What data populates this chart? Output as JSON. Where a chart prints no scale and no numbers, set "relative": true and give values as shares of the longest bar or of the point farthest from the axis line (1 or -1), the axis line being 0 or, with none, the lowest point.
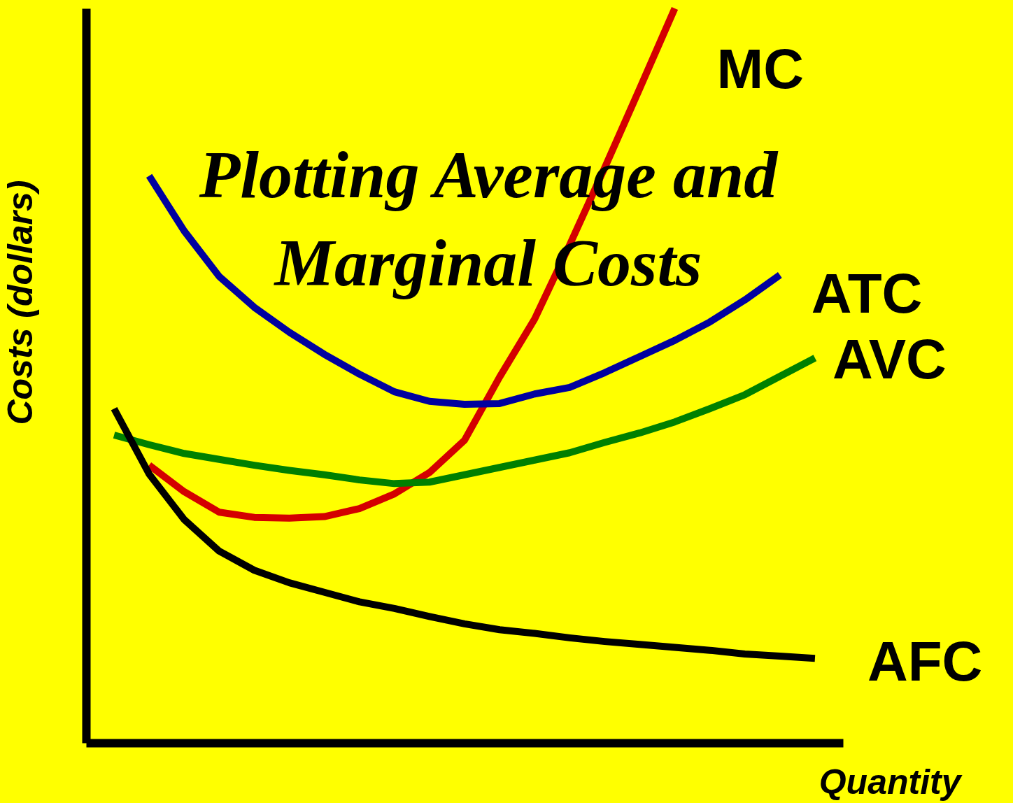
{
  "chart_data": {
    "type": "line",
    "title": "Plotting Average and Marginal Costs",
    "xlabel": "Quantity",
    "ylabel": "Costs (dollars)",
    "relative": true,
    "grid": false,
    "marker": "none",
    "line_style": "solid",
    "categories": [
      null,
      null,
      null,
      null,
      null,
      null,
      null,
      null,
      null,
      null,
      null,
      null,
      null,
      null,
      null,
      null,
      null,
      null,
      null,
      null,
      null
    ],
    "series": [
      {
        "name": "MC",
        "color": "#d40000",
        "values": [
          null,
          0.378,
          0.342,
          0.314,
          0.307,
          0.306,
          0.308,
          0.319,
          0.339,
          0.368,
          0.412,
          0.498,
          0.577,
          0.678,
          0.783,
          0.891,
          1.0,
          null,
          null,
          null,
          null
        ]
      },
      {
        "name": "ATC",
        "color": "#0000a0",
        "values": [
          null,
          0.772,
          0.697,
          0.635,
          0.593,
          0.559,
          0.529,
          0.502,
          0.478,
          0.465,
          0.461,
          0.462,
          0.475,
          0.484,
          0.504,
          0.526,
          0.548,
          0.573,
          0.603,
          0.637,
          null
        ]
      },
      {
        "name": "AVC",
        "color": "#008000",
        "values": [
          0.419,
          0.406,
          0.394,
          0.386,
          0.378,
          0.371,
          0.365,
          0.358,
          0.353,
          0.355,
          0.365,
          0.375,
          0.385,
          0.395,
          0.409,
          0.422,
          0.437,
          0.455,
          0.474,
          0.499,
          0.524
        ]
      },
      {
        "name": "AFC",
        "color": "#000000",
        "values": [
          0.455,
          0.366,
          0.304,
          0.261,
          0.235,
          0.218,
          0.205,
          0.192,
          0.183,
          0.172,
          0.162,
          0.154,
          0.149,
          0.143,
          0.138,
          0.134,
          0.13,
          0.126,
          0.121,
          0.118,
          0.115
        ]
      }
    ]
  }
}
